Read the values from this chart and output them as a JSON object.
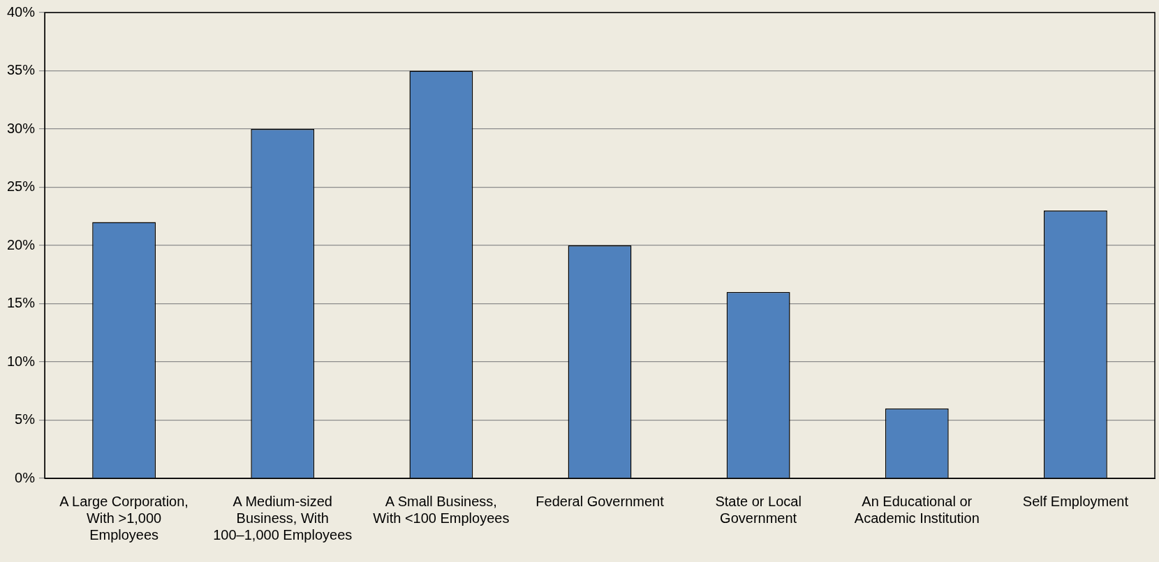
{
  "chart_data": {
    "type": "bar",
    "categories": [
      "A Large Corporation, With >1,000 Employees",
      "A Medium-sized Business, With 100–1,000 Employees",
      "A Small Business, With <100 Employees",
      "Federal Government",
      "State or Local Government",
      "An Educational or Academic Institution",
      "Self Employment"
    ],
    "values": [
      22,
      30,
      35,
      20,
      16,
      6,
      23
    ],
    "color": "#4f81bd",
    "ylim": [
      0,
      40
    ],
    "yticks": [
      {
        "value": 0,
        "label": "0%"
      },
      {
        "value": 5,
        "label": "5%"
      },
      {
        "value": 10,
        "label": "10%"
      },
      {
        "value": 15,
        "label": "15%"
      },
      {
        "value": 20,
        "label": "20%"
      },
      {
        "value": 25,
        "label": "25%"
      },
      {
        "value": 30,
        "label": "30%"
      },
      {
        "value": 35,
        "label": "35%"
      },
      {
        "value": 40,
        "label": "40%"
      }
    ],
    "grid": "y",
    "legend": false
  }
}
